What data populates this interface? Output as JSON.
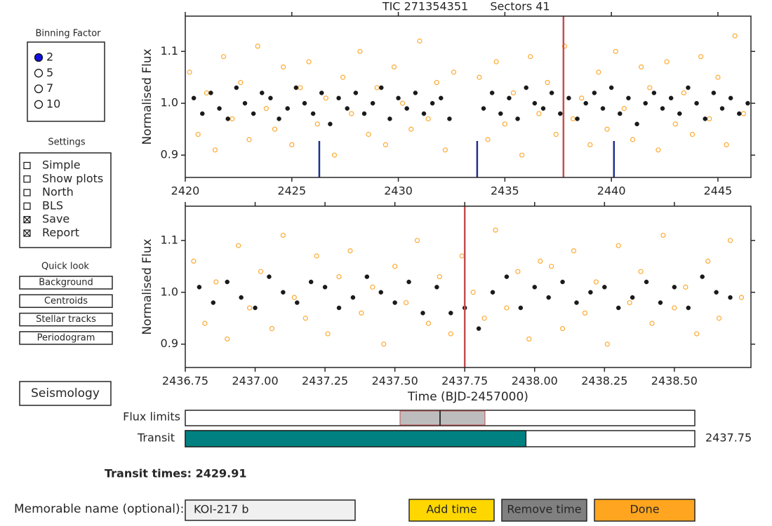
{
  "binning": {
    "title": "Binning Factor",
    "options": [
      "2",
      "5",
      "7",
      "10"
    ],
    "selected": 0
  },
  "settings": {
    "title": "Settings",
    "options": [
      {
        "label": "Simple",
        "checked": false
      },
      {
        "label": "Show plots",
        "checked": false
      },
      {
        "label": "North",
        "checked": false
      },
      {
        "label": "BLS",
        "checked": false
      },
      {
        "label": "Save",
        "checked": true
      },
      {
        "label": "Report",
        "checked": true
      }
    ]
  },
  "quick_look": {
    "title": "Quick look",
    "buttons": [
      "Background",
      "Centroids",
      "Stellar tracks",
      "Periodogram"
    ]
  },
  "seismology_button": "Seismology",
  "chart_data": [
    {
      "type": "scatter",
      "title": "TIC 271354351",
      "subtitle": "Sectors 41",
      "y_label": "Normalised Flux",
      "xlim": [
        2420,
        2446.55
      ],
      "ylim": [
        0.857,
        1.168
      ],
      "xticks": [
        2420,
        2425,
        2430,
        2435,
        2440,
        2445
      ],
      "yticks": [
        0.9,
        {
          "value": 1,
          "label": "1.0"
        },
        1.1
      ],
      "vline": {
        "x": 2437.75,
        "color": "#c44e52"
      },
      "transit_lines": {
        "x": [
          2426.29,
          2433.7,
          2440.12
        ],
        "color": "#1f2f8f"
      },
      "series": [
        {
          "color": "#fdaa33",
          "marker": "open",
          "x": [
            2420.2,
            2420.6,
            2421,
            2421.4,
            2421.8,
            2422.2,
            2422.6,
            2423,
            2423.4,
            2423.8,
            2424.2,
            2424.6,
            2425,
            2425.4,
            2425.8,
            2426.2,
            2426.6,
            2427,
            2427.4,
            2427.8,
            2428.2,
            2428.6,
            2429,
            2429.4,
            2429.8,
            2430.2,
            2430.6,
            2431,
            2431.4,
            2431.8,
            2432.2,
            2432.6,
            2433.8,
            2434.2,
            2434.6,
            2435,
            2435.4,
            2435.8,
            2436.2,
            2436.6,
            2437,
            2437.4,
            2437.8,
            2438.2,
            2438.6,
            2439,
            2439.4,
            2439.8,
            2440.2,
            2440.6,
            2441,
            2441.4,
            2441.8,
            2442.2,
            2442.6,
            2443,
            2443.4,
            2443.8,
            2444.2,
            2444.6,
            2445,
            2445.4,
            2445.8,
            2446.2
          ],
          "values": [
            1.06,
            0.94,
            1.02,
            0.91,
            1.09,
            0.97,
            1.04,
            0.93,
            1.11,
            0.99,
            0.95,
            1.07,
            0.92,
            1.03,
            1.08,
            0.96,
            1.01,
            0.9,
            1.05,
            0.98,
            1.1,
            0.94,
            1.03,
            0.92,
            1.07,
            1.0,
            0.95,
            1.12,
            0.97,
            1.04,
            0.91,
            1.06,
            1.05,
            0.93,
            1.08,
            0.96,
            1.02,
            0.9,
            1.09,
            0.98,
            1.04,
            0.94,
            1.11,
            0.97,
            1.01,
            0.92,
            1.06,
            0.95,
            1.1,
            0.99,
            0.93,
            1.07,
            1.03,
            0.91,
            1.08,
            0.96,
            1.02,
            0.94,
            1.09,
            0.97,
            1.05,
            0.92,
            1.13,
            0.98
          ]
        },
        {
          "color": "#1a1a1a",
          "marker": "filled",
          "x": [
            2420.4,
            2420.8,
            2421.2,
            2421.6,
            2422,
            2422.4,
            2422.8,
            2423.2,
            2423.6,
            2424,
            2424.4,
            2424.8,
            2425.2,
            2425.6,
            2426,
            2426.4,
            2426.8,
            2427.2,
            2427.6,
            2428,
            2428.4,
            2428.8,
            2429.2,
            2429.6,
            2430,
            2430.4,
            2430.8,
            2431.2,
            2431.6,
            2432,
            2432.4,
            2434,
            2434.4,
            2434.8,
            2435.2,
            2435.6,
            2436,
            2436.4,
            2436.8,
            2437.2,
            2437.6,
            2438,
            2438.4,
            2438.8,
            2439.2,
            2439.6,
            2440,
            2440.4,
            2440.8,
            2441.2,
            2441.6,
            2442,
            2442.4,
            2442.8,
            2443.2,
            2443.6,
            2444,
            2444.4,
            2444.8,
            2445.2,
            2445.6,
            2446,
            2446.4
          ],
          "values": [
            1.01,
            0.98,
            1.02,
            0.99,
            0.97,
            1.03,
            1.0,
            0.98,
            1.02,
            1.01,
            0.97,
            0.99,
            1.03,
            1.0,
            0.98,
            1.02,
            0.96,
            1.01,
            0.99,
            1.02,
            0.98,
            1.0,
            1.03,
            0.97,
            1.01,
            0.99,
            1.02,
            0.98,
            1.0,
            1.01,
            0.97,
            0.99,
            1.02,
            0.98,
            1.01,
            0.97,
            1.03,
            1.0,
            0.99,
            1.02,
            0.98,
            1.01,
            0.97,
            1.0,
            1.02,
            0.99,
            1.03,
            0.98,
            1.01,
            0.96,
            1.0,
            1.02,
            0.99,
            1.01,
            0.98,
            1.03,
            1.0,
            0.97,
            1.02,
            0.99,
            1.01,
            0.98,
            1.0
          ]
        }
      ]
    },
    {
      "type": "scatter",
      "y_label": "Normalised Flux",
      "x_label": "Time (BJD-2457000)",
      "xlim": [
        2436.75,
        2438.774
      ],
      "ylim": [
        0.855,
        1.166
      ],
      "xticks": [
        2436.75,
        {
          "value": 2437,
          "label": "2437.00"
        },
        2437.25,
        {
          "value": 2437.5,
          "label": "2437.50"
        },
        2437.75,
        {
          "value": 2438,
          "label": "2438.00"
        },
        2438.25,
        {
          "value": 2438.5,
          "label": "2438.50"
        }
      ],
      "yticks": [
        0.9,
        {
          "value": 1,
          "label": "1.0"
        },
        1.1
      ],
      "vline": {
        "x": 2437.75,
        "color": "#c44e52"
      },
      "series": [
        {
          "color": "#fdaa33",
          "marker": "open",
          "x": [
            2436.78,
            2436.82,
            2436.86,
            2436.9,
            2436.94,
            2436.98,
            2437.02,
            2437.06,
            2437.1,
            2437.14,
            2437.18,
            2437.22,
            2437.26,
            2437.3,
            2437.34,
            2437.38,
            2437.42,
            2437.46,
            2437.5,
            2437.54,
            2437.58,
            2437.62,
            2437.66,
            2437.7,
            2437.74,
            2437.78,
            2437.82,
            2437.86,
            2437.9,
            2437.94,
            2437.98,
            2438.02,
            2438.06,
            2438.1,
            2438.14,
            2438.18,
            2438.22,
            2438.26,
            2438.3,
            2438.34,
            2438.38,
            2438.42,
            2438.46,
            2438.5,
            2438.54,
            2438.58,
            2438.62,
            2438.66,
            2438.7,
            2438.74
          ],
          "values": [
            1.06,
            0.94,
            1.02,
            0.91,
            1.09,
            0.97,
            1.04,
            0.93,
            1.11,
            0.99,
            0.95,
            1.07,
            0.92,
            1.03,
            1.08,
            0.96,
            1.01,
            0.9,
            1.05,
            0.98,
            1.1,
            0.94,
            1.03,
            0.92,
            1.07,
            1.0,
            0.95,
            1.12,
            0.97,
            1.04,
            0.91,
            1.06,
            1.05,
            0.93,
            1.08,
            0.96,
            1.02,
            0.9,
            1.09,
            0.98,
            1.04,
            0.94,
            1.11,
            0.97,
            1.01,
            0.92,
            1.06,
            0.95,
            1.1,
            0.99
          ]
        },
        {
          "color": "#1a1a1a",
          "marker": "filled",
          "x": [
            2436.8,
            2436.85,
            2436.9,
            2436.95,
            2437,
            2437.05,
            2437.1,
            2437.15,
            2437.2,
            2437.25,
            2437.3,
            2437.35,
            2437.4,
            2437.45,
            2437.5,
            2437.55,
            2437.6,
            2437.65,
            2437.7,
            2437.75,
            2437.8,
            2437.85,
            2437.9,
            2437.95,
            2438,
            2438.05,
            2438.1,
            2438.15,
            2438.2,
            2438.25,
            2438.3,
            2438.35,
            2438.4,
            2438.45,
            2438.5,
            2438.55,
            2438.6,
            2438.65,
            2438.7
          ],
          "values": [
            1.01,
            0.98,
            1.02,
            0.99,
            0.97,
            1.03,
            1.0,
            0.98,
            1.02,
            1.01,
            0.97,
            0.99,
            1.03,
            1.0,
            0.98,
            1.02,
            0.96,
            1.01,
            0.96,
            0.97,
            0.93,
            1.0,
            1.03,
            0.97,
            1.01,
            0.99,
            1.02,
            0.98,
            1.0,
            1.01,
            0.97,
            0.99,
            1.02,
            0.98,
            1.01,
            0.97,
            1.03,
            1.0,
            0.99
          ]
        }
      ]
    }
  ],
  "flux_limits": {
    "label": "Flux limits"
  },
  "transit": {
    "label": "Transit",
    "value": 2437.75
  },
  "transit_times": "Transit times: 2429.91",
  "name_field": {
    "label": "Memorable name (optional):",
    "value": "KOI-217 b"
  },
  "buttons": [
    {
      "label": "Add time",
      "color": "#ffd700"
    },
    {
      "label": "Remove time",
      "color": "#808080"
    },
    {
      "label": "Done",
      "color": "#ffa51f"
    }
  ]
}
